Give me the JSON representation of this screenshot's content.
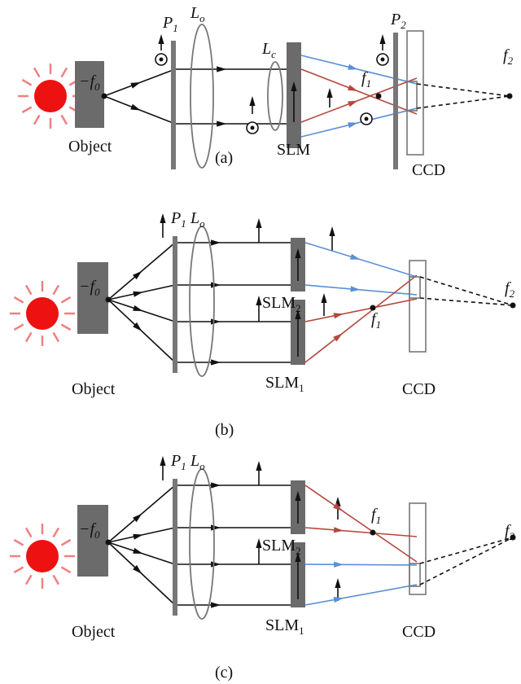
{
  "panels": [
    {
      "caption": "(a)",
      "labels": [
        {
          "text": "−f",
          "sub": "0"
        },
        {
          "text": "Object"
        },
        {
          "text": "P",
          "sub": "1"
        },
        {
          "text": "L",
          "sub": "o"
        },
        {
          "text": "L",
          "sub": "c"
        },
        {
          "text": "SLM"
        },
        {
          "text": "f",
          "sub": "1"
        },
        {
          "text": "P",
          "sub": "2"
        },
        {
          "text": "f",
          "sub": "2"
        },
        {
          "text": "CCD"
        }
      ]
    },
    {
      "caption": "(b)",
      "labels": [
        {
          "text": "−f",
          "sub": "0"
        },
        {
          "text": "Object"
        },
        {
          "text": "P",
          "sub": "1"
        },
        {
          "text": "L",
          "sub": "o"
        },
        {
          "text": "SLM",
          "sub": "2"
        },
        {
          "text": "SLM",
          "sub": "1"
        },
        {
          "text": "f",
          "sub": "1"
        },
        {
          "text": "f",
          "sub": "2"
        },
        {
          "text": "CCD"
        }
      ]
    },
    {
      "caption": "(c)",
      "labels": [
        {
          "text": "−f",
          "sub": "0"
        },
        {
          "text": "Object"
        },
        {
          "text": "P",
          "sub": "1"
        },
        {
          "text": "L",
          "sub": "o"
        },
        {
          "text": "SLM",
          "sub": "2"
        },
        {
          "text": "SLM",
          "sub": "1"
        },
        {
          "text": "f",
          "sub": "1"
        },
        {
          "text": "f",
          "sub": "2"
        },
        {
          "text": "CCD"
        }
      ]
    }
  ]
}
